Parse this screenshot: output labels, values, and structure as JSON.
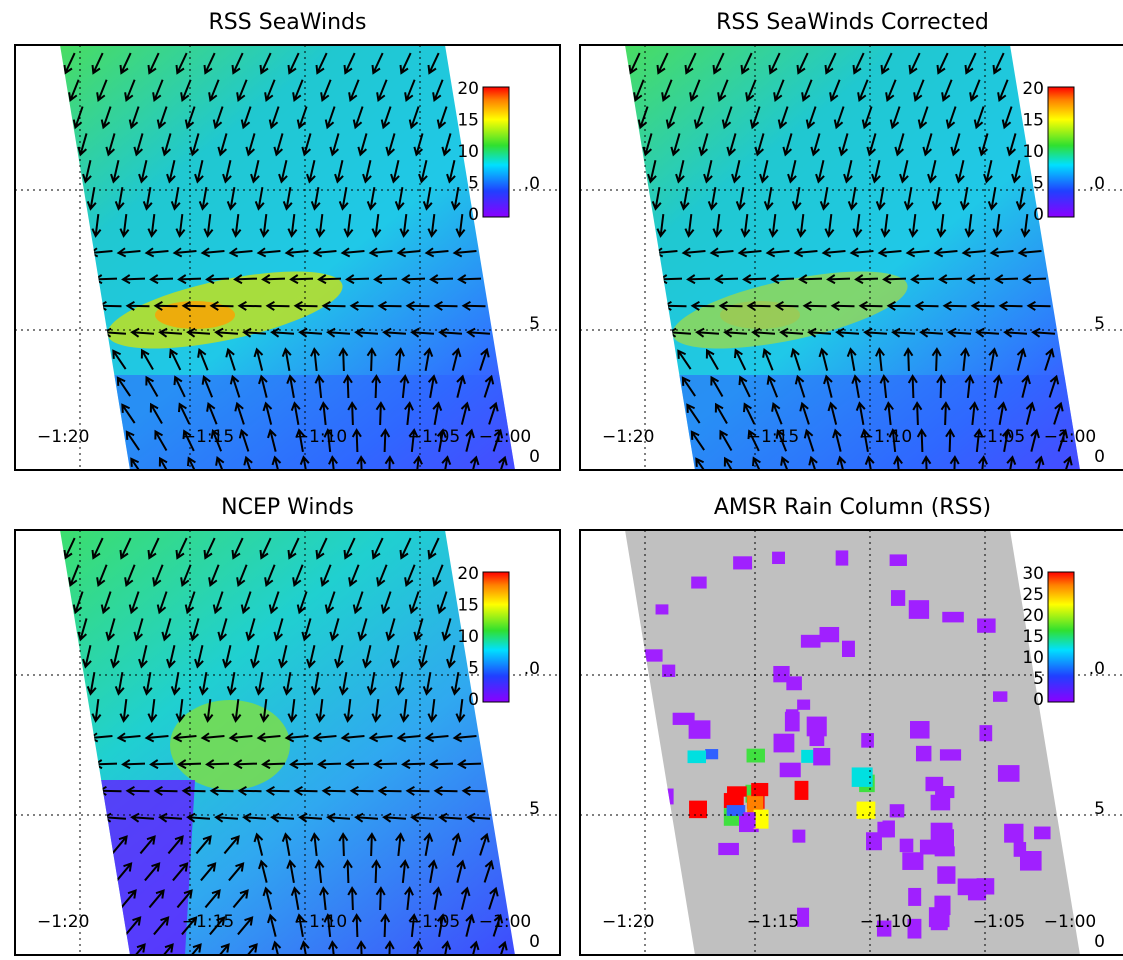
{
  "panels": [
    {
      "title": "RSS SeaWinds",
      "colorbar_ticks": [
        "20",
        "15",
        "10",
        "5",
        "0"
      ],
      "lon_labels": [
        "−1:20",
        "−1:15",
        "−1:10",
        "−1:05",
        "−1:00"
      ],
      "lat_labels": [
        ".0",
        "5",
        "0"
      ]
    },
    {
      "title": "RSS SeaWinds Corrected",
      "colorbar_ticks": [
        "20",
        "15",
        "10",
        "5",
        "0"
      ],
      "lon_labels": [
        "−1:20",
        "−1:15",
        "−1:10",
        "−1:05",
        "−1:00"
      ],
      "lat_labels": [
        ".0",
        "5",
        "0"
      ]
    },
    {
      "title": "NCEP Winds",
      "colorbar_ticks": [
        "20",
        "15",
        "10",
        "5",
        "0"
      ],
      "lon_labels": [
        "−1:20",
        "−1:15",
        "−1:10",
        "−1:05",
        "−1:00"
      ],
      "lat_labels": [
        ".0",
        "5",
        "0"
      ]
    },
    {
      "title": "AMSR Rain Column (RSS)",
      "colorbar_ticks": [
        "30",
        "25",
        "20",
        "15",
        "10",
        "5",
        "0"
      ],
      "lon_labels": [
        "−1:20",
        "−1:15",
        "−1:10",
        "−1:05",
        "−1:00"
      ],
      "lat_labels": [
        ".0",
        "5",
        "0"
      ]
    }
  ]
}
